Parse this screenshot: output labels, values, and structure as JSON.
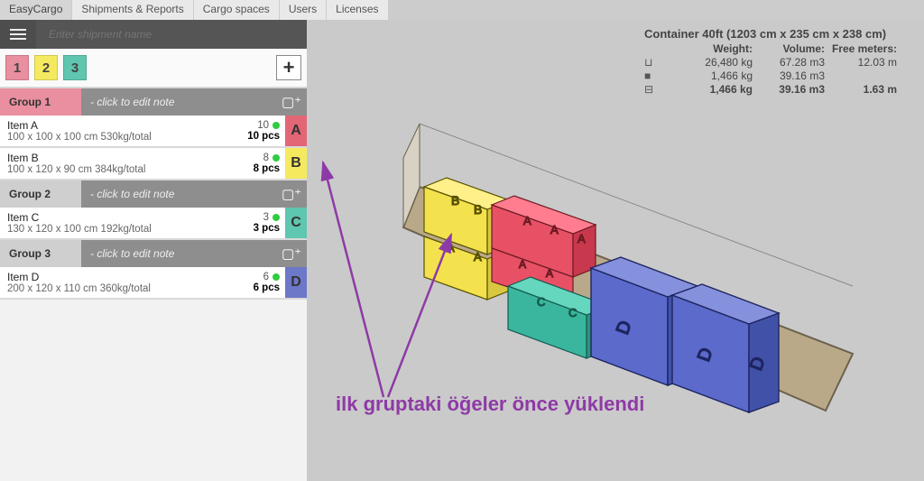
{
  "nav": {
    "brand": "EasyCargo",
    "tabs": [
      "Shipments & Reports",
      "Cargo spaces",
      "Users",
      "Licenses"
    ]
  },
  "search": {
    "placeholder": "Enter shipment name"
  },
  "numtabs": [
    {
      "n": "1",
      "color": "#e98fa0"
    },
    {
      "n": "2",
      "color": "#f5e95f"
    },
    {
      "n": "3",
      "color": "#5fc6b0"
    }
  ],
  "note_placeholder": "- click to edit note",
  "groups": [
    {
      "label": "Group 1",
      "label_bg": "#e98fa0",
      "items": [
        {
          "name": "Item A",
          "spec": "100 x 100 x 100 cm 530kg/total",
          "count": "10",
          "pcs": "10 pcs",
          "letter": "A",
          "color": "#e36676"
        },
        {
          "name": "Item B",
          "spec": "100 x 120 x 90 cm 384kg/total",
          "count": "8",
          "pcs": "8 pcs",
          "letter": "B",
          "color": "#f5e95f"
        }
      ]
    },
    {
      "label": "Group 2",
      "label_bg": "#cfcfcf",
      "items": [
        {
          "name": "Item C",
          "spec": "130 x 120 x 100 cm 192kg/total",
          "count": "3",
          "pcs": "3 pcs",
          "letter": "C",
          "color": "#5fc6b0"
        }
      ]
    },
    {
      "label": "Group 3",
      "label_bg": "#cfcfcf",
      "items": [
        {
          "name": "Item D",
          "spec": "200 x 120 x 110 cm 360kg/total",
          "count": "6",
          "pcs": "6 pcs",
          "letter": "D",
          "color": "#6d78c8"
        }
      ]
    }
  ],
  "container": {
    "title": "Container 40ft (1203 cm x 235 cm x 238 cm)",
    "headers": {
      "weight": "Weight:",
      "volume": "Volume:",
      "free": "Free meters:"
    },
    "rows": [
      {
        "w": "26,480 kg",
        "v": "67.28 m3",
        "f": "12.03 m",
        "bold": false
      },
      {
        "w": "1,466 kg",
        "v": "39.16 m3",
        "f": "",
        "bold": false
      },
      {
        "w": "1,466 kg",
        "v": "39.16 m3",
        "f": "1.63 m",
        "bold": true
      }
    ],
    "floor_color": "#b9a988",
    "wall_color": "#d8d2c4",
    "annotation_color": "#8e3aa6",
    "boxes": [
      {
        "letter": "B",
        "fill": "#f3e24e"
      },
      {
        "letter": "A",
        "fill": "#e85165"
      },
      {
        "letter": "C",
        "fill": "#3bb69e"
      },
      {
        "letter": "D",
        "fill": "#5b6acb"
      }
    ]
  },
  "annotation": "ilk gruptaki öğeler önce yüklendi"
}
